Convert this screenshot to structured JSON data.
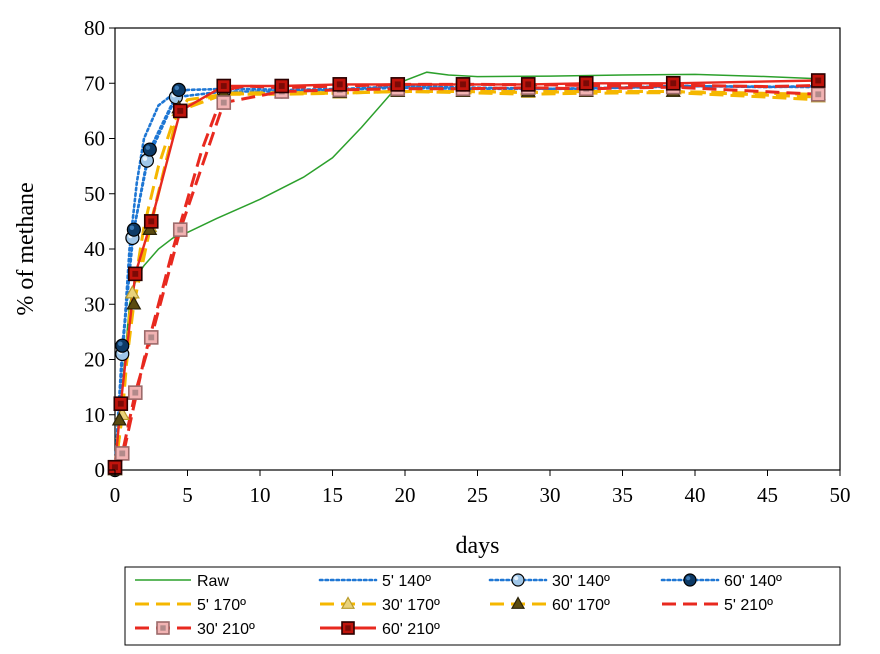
{
  "chart_data": {
    "type": "line",
    "xlabel": "days",
    "ylabel": "% of methane",
    "xlim": [
      0,
      50
    ],
    "ylim": [
      0,
      80
    ],
    "xticks": [
      0,
      5,
      10,
      15,
      20,
      25,
      30,
      35,
      40,
      45,
      50
    ],
    "yticks": [
      0,
      10,
      20,
      30,
      40,
      50,
      60,
      70,
      80
    ],
    "grid": false,
    "legend_position": "bottom",
    "series": [
      {
        "name": "Raw",
        "color": "#2ca02c",
        "line_style": "solid",
        "marker": "none",
        "points": [
          [
            0,
            0
          ],
          [
            0.5,
            15
          ],
          [
            1,
            30
          ],
          [
            1.5,
            35
          ],
          [
            2,
            37
          ],
          [
            3,
            40
          ],
          [
            4,
            42
          ],
          [
            5,
            43
          ],
          [
            7,
            45.5
          ],
          [
            10,
            49
          ],
          [
            13,
            53
          ],
          [
            15,
            56.5
          ],
          [
            17,
            62
          ],
          [
            19,
            68
          ],
          [
            20,
            70.5
          ],
          [
            21.5,
            72
          ],
          [
            23,
            71.5
          ],
          [
            25,
            71.2
          ],
          [
            30,
            71.3
          ],
          [
            35,
            71.5
          ],
          [
            40,
            71.6
          ],
          [
            45,
            71.2
          ],
          [
            48.5,
            70.8
          ]
        ]
      },
      {
        "name": "5' 140º",
        "color": "#1f77d4",
        "line_style": "dotted",
        "marker": "none",
        "points": [
          [
            0,
            0
          ],
          [
            0.5,
            20
          ],
          [
            1,
            40
          ],
          [
            1.5,
            52
          ],
          [
            2,
            60
          ],
          [
            3,
            66
          ],
          [
            4,
            68
          ],
          [
            5,
            68.8
          ],
          [
            8,
            69
          ],
          [
            12,
            68.8
          ],
          [
            16,
            69
          ],
          [
            20,
            69.5
          ],
          [
            25,
            69.2
          ],
          [
            30,
            69
          ],
          [
            35,
            69.2
          ],
          [
            40,
            69.5
          ],
          [
            45,
            69.3
          ],
          [
            48.5,
            69.5
          ]
        ]
      },
      {
        "name": "30' 140º",
        "color": "#1f77d4",
        "line_style": "dotted",
        "marker": "circle-light",
        "points": [
          [
            0,
            0
          ],
          [
            0.5,
            21
          ],
          [
            1.2,
            42
          ],
          [
            2.2,
            56
          ],
          [
            4.2,
            67.5
          ],
          [
            7.5,
            68.5
          ],
          [
            11.5,
            68.5
          ],
          [
            15.5,
            68.8
          ],
          [
            19.5,
            69.2
          ],
          [
            24,
            69
          ],
          [
            28.5,
            69
          ],
          [
            32.5,
            69
          ],
          [
            38.5,
            69.5
          ],
          [
            48.5,
            69.3
          ]
        ]
      },
      {
        "name": "60' 140º",
        "color": "#1f77d4",
        "line_style": "dotted",
        "marker": "circle-dark",
        "points": [
          [
            0,
            0
          ],
          [
            0.5,
            22.5
          ],
          [
            1.3,
            43.5
          ],
          [
            2.4,
            58
          ],
          [
            4.4,
            68.8
          ]
        ]
      },
      {
        "name": "5' 170º",
        "color": "#f5b700",
        "line_style": "dashed",
        "marker": "none",
        "points": [
          [
            0,
            0
          ],
          [
            0.5,
            10
          ],
          [
            1,
            28
          ],
          [
            1.5,
            36
          ],
          [
            2,
            44
          ],
          [
            3,
            55
          ],
          [
            4,
            63
          ],
          [
            5,
            67
          ],
          [
            7.5,
            68
          ],
          [
            11.5,
            68
          ],
          [
            15.5,
            68.2
          ],
          [
            19.5,
            68.5
          ],
          [
            24,
            68.3
          ],
          [
            28.5,
            68
          ],
          [
            32.5,
            68.2
          ],
          [
            38.5,
            68.3
          ],
          [
            45,
            67.5
          ],
          [
            48.5,
            67
          ]
        ]
      },
      {
        "name": "30' 170º",
        "color": "#f5b700",
        "line_style": "dashed",
        "marker": "triangle-light",
        "points": [
          [
            0,
            0
          ],
          [
            0.5,
            10
          ],
          [
            1.2,
            32
          ],
          [
            2.4,
            44
          ],
          [
            4.4,
            65
          ],
          [
            7.5,
            68
          ],
          [
            11.5,
            68.2
          ],
          [
            15.5,
            68.2
          ],
          [
            19.5,
            68.5
          ],
          [
            24,
            68.5
          ],
          [
            28.5,
            68.3
          ],
          [
            32.5,
            68.5
          ],
          [
            38.5,
            68.5
          ],
          [
            48.5,
            67.5
          ]
        ]
      },
      {
        "name": "60' 170º",
        "color": "#f5b700",
        "line_style": "dashed",
        "marker": "triangle-dark",
        "points": [
          [
            0,
            0
          ],
          [
            0.3,
            9
          ],
          [
            1.3,
            30
          ],
          [
            2.4,
            43.5
          ],
          [
            4.4,
            65.5
          ],
          [
            7.5,
            68.2
          ],
          [
            11.5,
            68.3
          ],
          [
            15.5,
            68.3
          ],
          [
            19.5,
            68.5
          ],
          [
            24,
            68.5
          ],
          [
            28.5,
            68.5
          ],
          [
            32.5,
            68.5
          ],
          [
            38.5,
            68.5
          ],
          [
            48.5,
            68
          ]
        ]
      },
      {
        "name": "5' 210º",
        "color": "#e8291f",
        "line_style": "dashed",
        "marker": "none",
        "points": [
          [
            0,
            0
          ],
          [
            0.5,
            2
          ],
          [
            1,
            8
          ],
          [
            1.5,
            14
          ],
          [
            2,
            20
          ],
          [
            3,
            30
          ],
          [
            4,
            40
          ],
          [
            5,
            49
          ],
          [
            6,
            58
          ],
          [
            7,
            65
          ],
          [
            8,
            69
          ],
          [
            9,
            69.5
          ],
          [
            11.5,
            69.2
          ],
          [
            15.5,
            69.5
          ],
          [
            20,
            69.8
          ],
          [
            25,
            69.8
          ],
          [
            30,
            69.7
          ],
          [
            35,
            69.5
          ],
          [
            40,
            69.6
          ],
          [
            45,
            69.4
          ],
          [
            48.5,
            69.6
          ]
        ]
      },
      {
        "name": "30' 210º",
        "color": "#e8291f",
        "line_style": "dashed",
        "marker": "square-light",
        "points": [
          [
            0,
            0.5
          ],
          [
            0.5,
            3
          ],
          [
            1.4,
            14
          ],
          [
            2.5,
            24
          ],
          [
            4.5,
            43.5
          ],
          [
            7.5,
            66.5
          ],
          [
            11.5,
            68.5
          ],
          [
            15.5,
            68.8
          ],
          [
            19.5,
            69
          ],
          [
            24,
            69
          ],
          [
            28.5,
            69.2
          ],
          [
            32.5,
            69
          ],
          [
            38.5,
            69.3
          ],
          [
            48.5,
            68
          ]
        ]
      },
      {
        "name": "60' 210º",
        "color": "#e8291f",
        "line_style": "solid",
        "marker": "square-dark",
        "points": [
          [
            0,
            0.5
          ],
          [
            0.4,
            12
          ],
          [
            1.4,
            35.5
          ],
          [
            2.5,
            45
          ],
          [
            4.5,
            65
          ],
          [
            7.5,
            69.5
          ],
          [
            11.5,
            69.5
          ],
          [
            15.5,
            69.8
          ],
          [
            19.5,
            69.8
          ],
          [
            24,
            69.8
          ],
          [
            28.5,
            69.8
          ],
          [
            32.5,
            70
          ],
          [
            38.5,
            70
          ],
          [
            48.5,
            70.5
          ]
        ]
      }
    ]
  }
}
